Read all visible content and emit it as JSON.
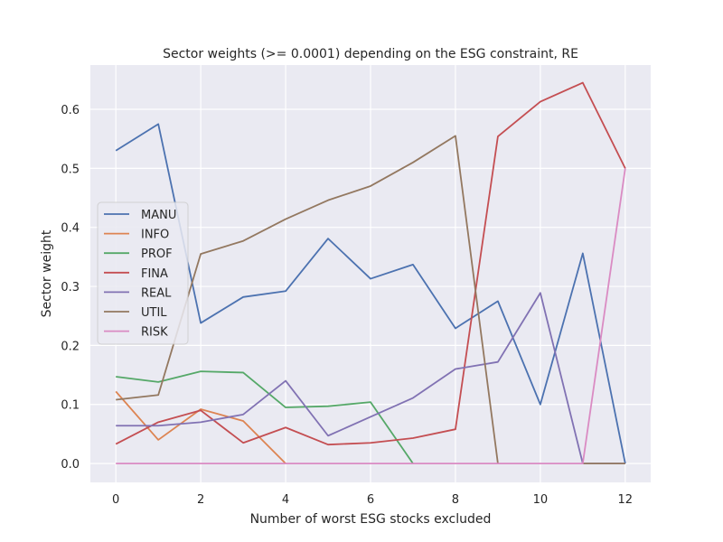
{
  "chart_data": {
    "type": "line",
    "title": "Sector weights (>= 0.0001) depending on the ESG constraint, RE",
    "xlabel": "Number of worst ESG stocks excluded",
    "ylabel": "Sector weight",
    "xlim": [
      -0.6,
      12.6
    ],
    "ylim": [
      -0.032,
      0.675
    ],
    "xticks": [
      0,
      2,
      4,
      6,
      8,
      10,
      12
    ],
    "yticks": [
      0.0,
      0.1,
      0.2,
      0.3,
      0.4,
      0.5,
      0.6
    ],
    "ytick_labels": [
      "0.0",
      "0.1",
      "0.2",
      "0.3",
      "0.4",
      "0.5",
      "0.6"
    ],
    "grid": true,
    "legend_position": "center-left",
    "x": [
      0,
      1,
      2,
      3,
      4,
      5,
      6,
      7,
      8,
      9,
      10,
      11,
      12
    ],
    "series": [
      {
        "name": "MANU",
        "color": "#4c72b0",
        "values": [
          0.53,
          0.575,
          0.238,
          0.282,
          0.292,
          0.381,
          0.313,
          0.337,
          0.229,
          0.275,
          0.1,
          0.356,
          0.0
        ]
      },
      {
        "name": "INFO",
        "color": "#dd8452",
        "values": [
          0.122,
          0.04,
          0.092,
          0.072,
          0.0,
          null,
          null,
          null,
          null,
          null,
          null,
          null,
          null
        ]
      },
      {
        "name": "PROF",
        "color": "#55a868",
        "values": [
          0.147,
          0.138,
          0.156,
          0.154,
          0.095,
          0.097,
          0.104,
          0.0,
          null,
          null,
          null,
          null,
          null
        ]
      },
      {
        "name": "FINA",
        "color": "#c44e52",
        "values": [
          0.033,
          0.07,
          0.09,
          0.035,
          0.061,
          0.032,
          0.035,
          0.043,
          0.058,
          0.554,
          0.613,
          0.645,
          0.5
        ]
      },
      {
        "name": "REAL",
        "color": "#8172b3",
        "values": [
          0.064,
          0.064,
          0.07,
          0.083,
          0.14,
          0.047,
          0.079,
          0.111,
          0.16,
          0.172,
          0.289,
          0.0,
          0.0
        ]
      },
      {
        "name": "UTIL",
        "color": "#937860",
        "values": [
          0.108,
          0.116,
          0.355,
          0.377,
          0.414,
          0.446,
          0.47,
          0.51,
          0.555,
          0.0,
          null,
          0.0,
          0.0
        ]
      },
      {
        "name": "RISK",
        "color": "#da8bc3",
        "values": [
          0.0,
          0.0,
          0.0,
          0.0,
          0.0,
          0.0,
          0.0,
          0.0,
          0.0,
          0.0,
          0.0,
          0.0,
          0.5
        ]
      }
    ]
  }
}
